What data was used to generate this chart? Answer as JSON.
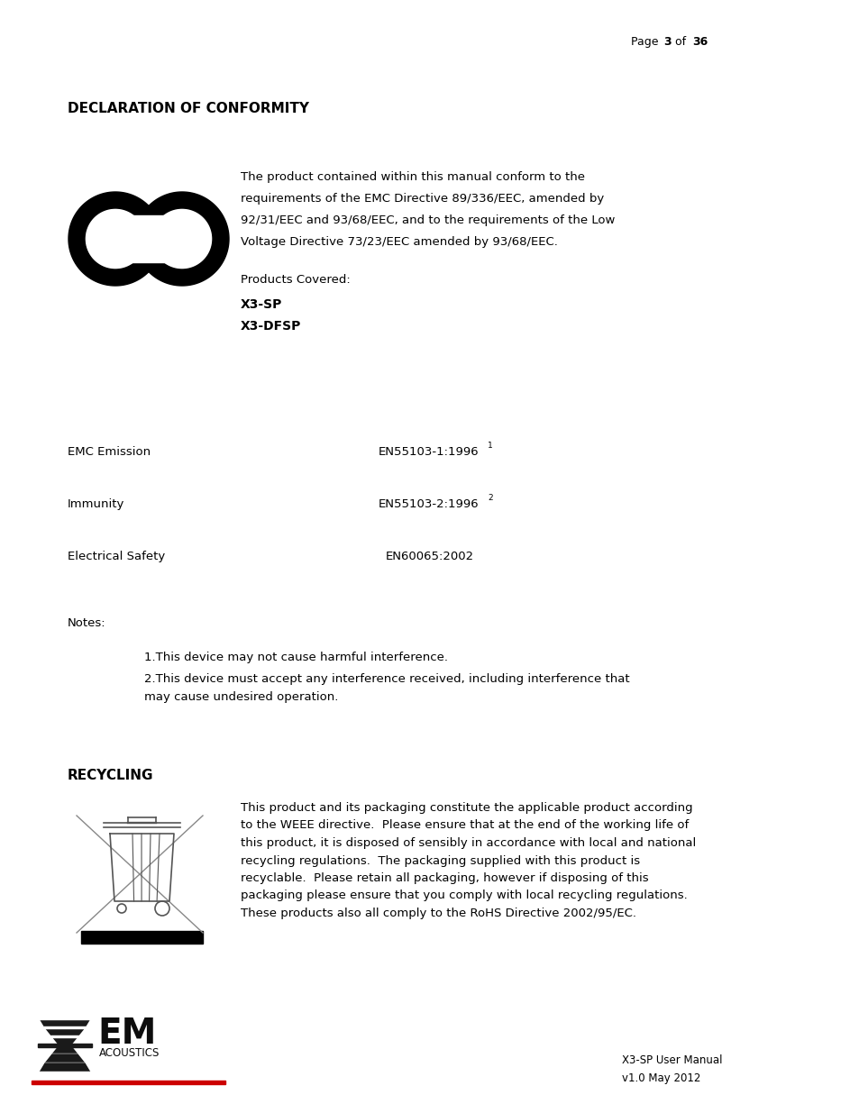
{
  "page_header_normal1": "Page ",
  "page_header_bold1": "3",
  "page_header_normal2": " of ",
  "page_header_bold2": "36",
  "section1_title": "DECLARATION OF CONFORMITY",
  "ce_text_line1": "The product contained within this manual conform to the",
  "ce_text_line2": "requirements of the EMC Directive 89/336/EEC, amended by",
  "ce_text_line3": "92/31/EEC and 93/68/EEC, and to the requirements of the Low",
  "ce_text_line4": "Voltage Directive 73/23/EEC amended by 93/68/EEC.",
  "products_covered_label": "Products Covered:",
  "product1": "X3-SP",
  "product2": "X3-DFSP",
  "emc_label": "EMC Emission",
  "emc_value": "EN55103-1:1996",
  "emc_super": "1",
  "immunity_label": "Immunity",
  "immunity_value": "EN55103-2:1996",
  "immunity_super": "2",
  "electrical_label": "Electrical Safety",
  "electrical_value": "EN60065:2002",
  "notes_label": "Notes:",
  "note1": "1.This device may not cause harmful interference.",
  "note2_line1": "2.This device must accept any interference received, including interference that",
  "note2_line2": "may cause undesired operation.",
  "section2_title": "RECYCLING",
  "recycling_text": "This product and its packaging constitute the applicable product according\nto the WEEE directive.  Please ensure that at the end of the working life of\nthis product, it is disposed of sensibly in accordance with local and national\nrecycling regulations.  The packaging supplied with this product is\nrecyclable.  Please retain all packaging, however if disposing of this\npackaging please ensure that you comply with local recycling regulations.\nThese products also all comply to the RoHS Directive 2002/95/EC.",
  "footer_line1": "X3-SP User Manual",
  "footer_line2": "v1.0 May 2012",
  "bg_color": "#ffffff",
  "text_color": "#000000"
}
